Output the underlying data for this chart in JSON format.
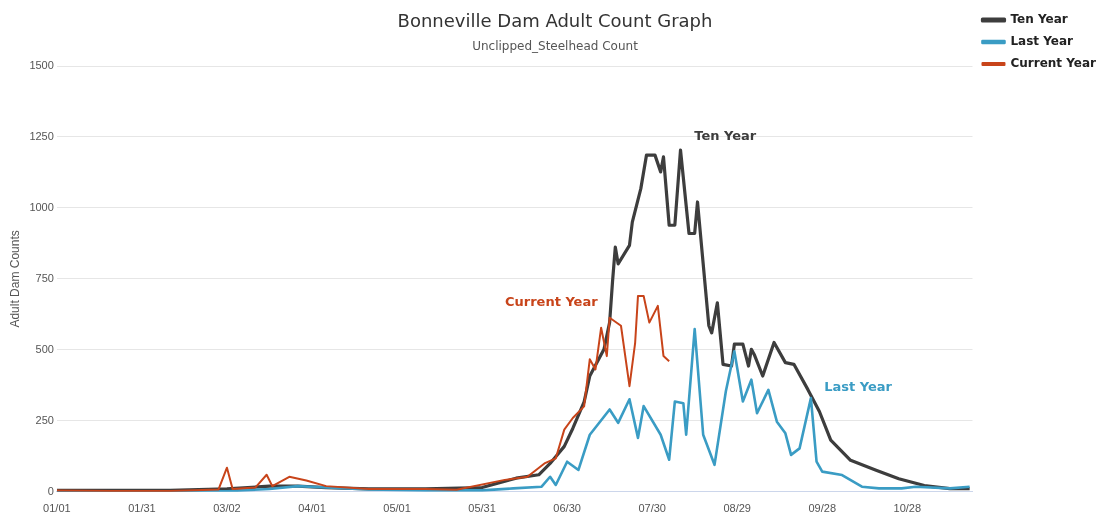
{
  "chart_data": {
    "type": "line",
    "title": "Bonneville Dam Adult Count Graph",
    "subtitle": "Unclipped_Steelhead Count",
    "ylabel": "Adult Dam Counts",
    "xlim": [
      "--01-01",
      "--11-20"
    ],
    "xticks": [
      {
        "value": "--01-01",
        "label": "01/01"
      },
      {
        "value": "--01-31",
        "label": "01/31"
      },
      {
        "value": "--03-02",
        "label": "03/02"
      },
      {
        "value": "--04-01",
        "label": "04/01"
      },
      {
        "value": "--05-01",
        "label": "05/01"
      },
      {
        "value": "--05-31",
        "label": "05/31"
      },
      {
        "value": "--06-30",
        "label": "06/30"
      },
      {
        "value": "--07-30",
        "label": "07/30"
      },
      {
        "value": "--08-29",
        "label": "08/29"
      },
      {
        "value": "--09-28",
        "label": "09/28"
      },
      {
        "value": "--10-28",
        "label": "10/28"
      }
    ],
    "ylim": [
      0,
      1500
    ],
    "yticks": [
      0,
      250,
      500,
      750,
      1000,
      1250,
      1500
    ],
    "grid": "y",
    "legend": "top right",
    "marker": "none",
    "line_style": "solid",
    "annotations": [
      "Ten Year",
      "Current Year",
      "Last Year"
    ],
    "series": [
      {
        "name": "Ten Year",
        "color": "#3d3d3d",
        "x": [
          "--01-01",
          "--01-21",
          "--02-10",
          "--03-02",
          "--03-17",
          "--03-27",
          "--04-06",
          "--04-21",
          "--05-11",
          "--05-31",
          "--06-12",
          "--06-20",
          "--06-24",
          "--06-29",
          "--07-02",
          "--07-06",
          "--07-08",
          "--07-13",
          "--07-15",
          "--07-16",
          "--07-17",
          "--07-18",
          "--07-22",
          "--07-23",
          "--07-26",
          "--07-28",
          "--07-31",
          "--08-02",
          "--08-03",
          "--08-05",
          "--08-07",
          "--08-09",
          "--08-12",
          "--08-14",
          "--08-15",
          "--08-19",
          "--08-20",
          "--08-22",
          "--08-24",
          "--08-27",
          "--08-28",
          "--08-31",
          "--09-02",
          "--09-03",
          "--09-04",
          "--09-07",
          "--09-11",
          "--09-15",
          "--09-18",
          "--09-23",
          "--09-27",
          "--10-01",
          "--10-08",
          "--10-17",
          "--10-25",
          "--11-03",
          "--11-12",
          "--11-19"
        ],
        "values": [
          5,
          5,
          5,
          10,
          20,
          20,
          15,
          10,
          10,
          15,
          48,
          60,
          100,
          160,
          223,
          317,
          408,
          502,
          597,
          738,
          862,
          803,
          868,
          950,
          1068,
          1186,
          1186,
          1127,
          1180,
          939,
          939,
          1204,
          910,
          910,
          1021,
          585,
          560,
          666,
          449,
          443,
          520,
          520,
          443,
          502,
          484,
          408,
          526,
          455,
          449,
          359,
          283,
          182,
          111,
          76,
          46,
          22,
          11,
          11
        ]
      },
      {
        "name": "Last Year",
        "color": "#3a9cc4",
        "x": [
          "--01-01",
          "--01-31",
          "--03-02",
          "--03-17",
          "--03-27",
          "--04-06",
          "--04-21",
          "--05-11",
          "--05-31",
          "--06-11",
          "--06-21",
          "--06-24",
          "--06-26",
          "--06-30",
          "--07-04",
          "--07-08",
          "--07-15",
          "--07-18",
          "--07-22",
          "--07-25",
          "--07-27",
          "--08-02",
          "--08-05",
          "--08-07",
          "--08-10",
          "--08-11",
          "--08-14",
          "--08-17",
          "--08-21",
          "--08-25",
          "--08-28",
          "--08-31",
          "--09-03",
          "--09-05",
          "--09-09",
          "--09-12",
          "--09-15",
          "--09-17",
          "--09-20",
          "--09-24",
          "--09-26",
          "--09-28",
          "--10-05",
          "--10-12",
          "--10-18",
          "--10-26",
          "--10-31",
          "--11-12",
          "--11-19"
        ],
        "values": [
          2,
          2,
          2,
          10,
          20,
          15,
          8,
          5,
          5,
          12,
          18,
          53,
          24,
          106,
          77,
          201,
          290,
          243,
          326,
          190,
          302,
          201,
          113,
          318,
          312,
          201,
          573,
          201,
          95,
          354,
          495,
          318,
          395,
          277,
          359,
          247,
          206,
          130,
          153,
          330,
          106,
          71,
          59,
          18,
          12,
          12,
          18,
          12,
          18
        ]
      },
      {
        "name": "Current Year",
        "color": "#c8441a",
        "x": [
          "--01-01",
          "--01-21",
          "--02-10",
          "--02-27",
          "--03-02",
          "--03-04",
          "--03-12",
          "--03-16",
          "--03-18",
          "--03-24",
          "--03-30",
          "--04-06",
          "--04-21",
          "--05-11",
          "--05-22",
          "--06-08",
          "--06-16",
          "--06-22",
          "--06-26",
          "--06-29",
          "--07-02",
          "--07-06",
          "--07-08",
          "--07-10",
          "--07-12",
          "--07-14",
          "--07-15",
          "--07-19",
          "--07-22",
          "--07-24",
          "--07-25",
          "--07-27",
          "--07-29",
          "--08-01",
          "--08-03",
          "--08-05"
        ],
        "values": [
          5,
          3,
          3,
          8,
          85,
          10,
          15,
          60,
          20,
          53,
          40,
          20,
          10,
          10,
          7,
          42,
          53,
          100,
          118,
          219,
          260,
          301,
          467,
          431,
          578,
          478,
          613,
          585,
          372,
          525,
          690,
          690,
          596,
          655,
          478,
          460
        ]
      }
    ]
  }
}
